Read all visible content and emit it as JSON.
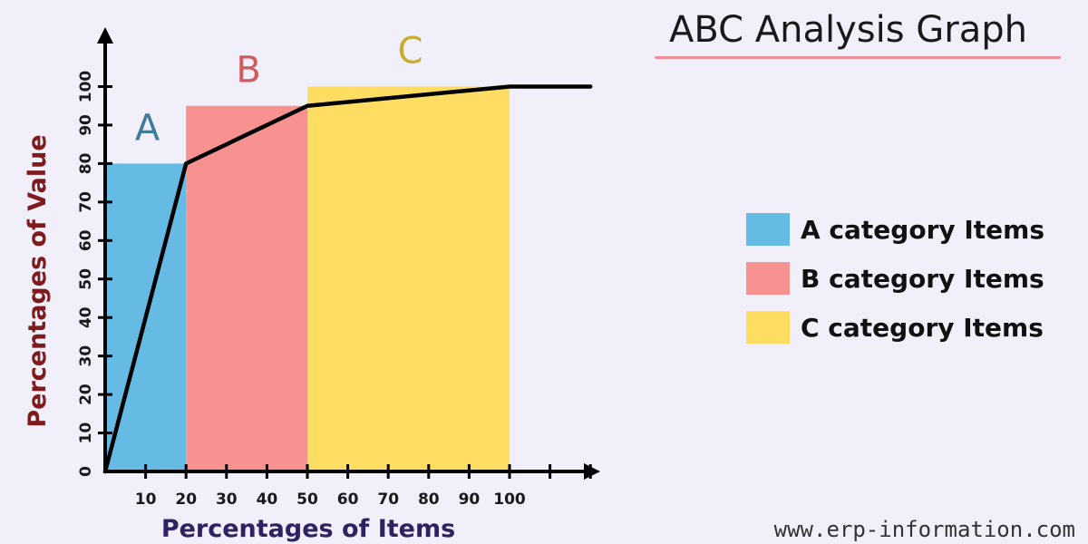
{
  "title": "ABC Analysis Graph",
  "watermark": "www.erp-information.com",
  "chart_data": {
    "type": "bar",
    "xlabel": "Percentages of Items",
    "ylabel": "Percentages of Value",
    "xlim": [
      0,
      120
    ],
    "ylim": [
      0,
      100
    ],
    "x_ticks": [
      10,
      20,
      30,
      40,
      50,
      60,
      70,
      80,
      90,
      100
    ],
    "y_ticks": [
      0,
      10,
      20,
      30,
      40,
      50,
      60,
      70,
      80,
      90,
      100
    ],
    "bars": [
      {
        "label": "A",
        "legend": "A category Items",
        "x_start": 0,
        "x_end": 20,
        "value": 80,
        "color": "#66bbe4",
        "label_color": "#3c7c9a"
      },
      {
        "label": "B",
        "legend": "B category Items",
        "x_start": 20,
        "x_end": 50,
        "value": 95,
        "color": "#f79291",
        "label_color": "#d25a5a"
      },
      {
        "label": "C",
        "legend": "C category Items",
        "x_start": 50,
        "x_end": 100,
        "value": 100,
        "color": "#ffdd63",
        "label_color": "#c8ac2c"
      }
    ],
    "cumulative_line": {
      "x": [
        0,
        20,
        50,
        100,
        120
      ],
      "y": [
        0,
        80,
        95,
        100,
        100
      ],
      "color": "#000000"
    },
    "label_colors": {
      "ylabel": "#7f1b1d",
      "xlabel": "#2e2262"
    },
    "legend_position": "right"
  }
}
